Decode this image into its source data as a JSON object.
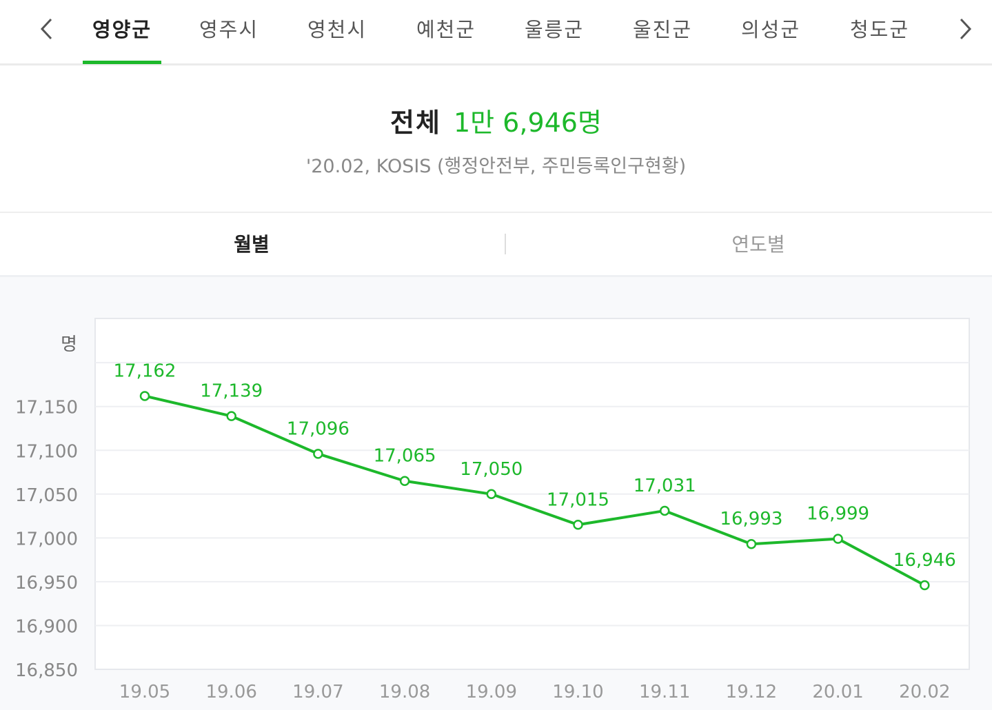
{
  "tabs": {
    "items": [
      "영양군",
      "영주시",
      "영천시",
      "예천군",
      "울릉군",
      "울진군",
      "의성군",
      "청도군"
    ],
    "active_index": 0,
    "accent_color": "#1db82b"
  },
  "summary": {
    "label": "전체",
    "value": "1만 6,946명",
    "source": "'20.02, KOSIS (행정안전부, 주민등록인구현황)"
  },
  "period_tabs": {
    "monthly": "월별",
    "yearly": "연도별",
    "active": "monthly"
  },
  "chart_data": {
    "type": "line",
    "ylabel": "명",
    "categories": [
      "19.05",
      "19.06",
      "19.07",
      "19.08",
      "19.09",
      "19.10",
      "19.11",
      "19.12",
      "20.01",
      "20.02"
    ],
    "values": [
      17162,
      17139,
      17096,
      17065,
      17050,
      17015,
      17031,
      16993,
      16999,
      16946
    ],
    "data_labels": [
      "17,162",
      "17,139",
      "17,096",
      "17,065",
      "17,050",
      "17,015",
      "17,031",
      "16,993",
      "16,999",
      "16,946"
    ],
    "yticks": [
      17150,
      17100,
      17050,
      17000,
      16950,
      16900,
      16850
    ],
    "ytick_labels": [
      "17,150",
      "17,100",
      "17,050",
      "17,000",
      "16,950",
      "16,900",
      "16,850"
    ],
    "ylim": [
      16850,
      17250
    ],
    "grid": true,
    "color": "#1db82b"
  }
}
